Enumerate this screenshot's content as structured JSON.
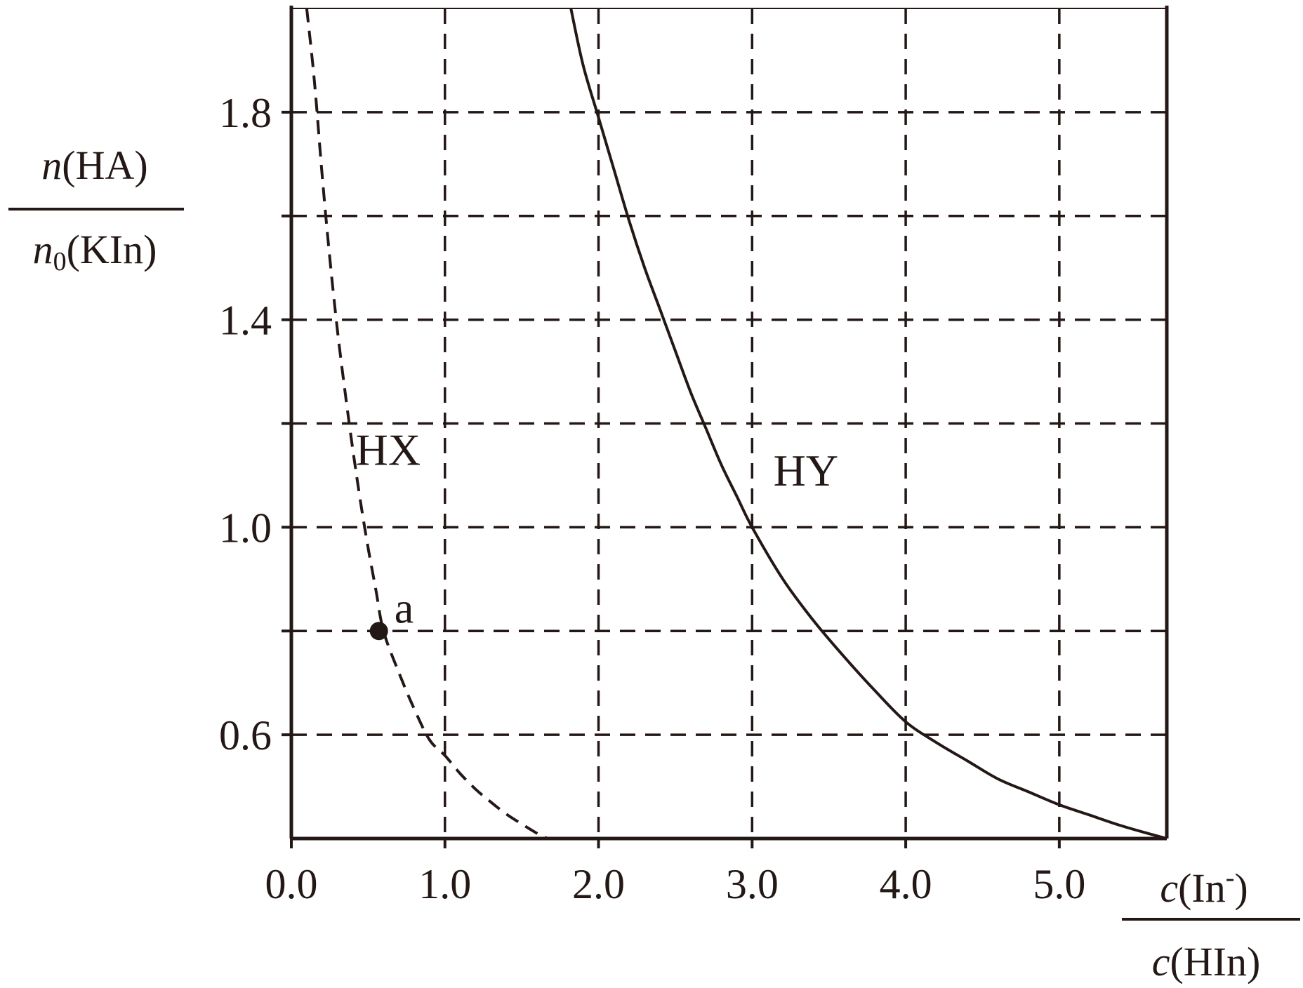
{
  "chart_data": {
    "type": "line",
    "title": "",
    "xlabel": {
      "numerator": {
        "italic": "c",
        "rest": "(In",
        "sup": "-",
        "close": ")"
      },
      "denominator": {
        "italic": "c",
        "rest": "(HIn)"
      }
    },
    "ylabel": {
      "numerator": {
        "italic": "n",
        "rest": "(HA)"
      },
      "denominator": {
        "italic": "n",
        "sub": "0",
        "rest": "(KIn)"
      }
    },
    "xlim": [
      0.0,
      5.7
    ],
    "ylim": [
      0.4,
      2.0
    ],
    "x_ticks": [
      {
        "value": 0.0,
        "label": "0.0"
      },
      {
        "value": 1.0,
        "label": "1.0"
      },
      {
        "value": 2.0,
        "label": "2.0"
      },
      {
        "value": 3.0,
        "label": "3.0"
      },
      {
        "value": 4.0,
        "label": "4.0"
      },
      {
        "value": 5.0,
        "label": "5.0"
      }
    ],
    "y_ticks": [
      {
        "value": 0.6,
        "label": "0.6"
      },
      {
        "value": 1.0,
        "label": "1.0"
      },
      {
        "value": 1.4,
        "label": "1.4"
      },
      {
        "value": 1.8,
        "label": "1.8"
      }
    ],
    "y_gridlines": [
      0.6,
      0.8,
      1.0,
      1.2,
      1.4,
      1.6,
      1.8
    ],
    "x_gridlines": [
      1.0,
      2.0,
      3.0,
      4.0,
      5.0
    ],
    "grid": true,
    "series": [
      {
        "name": "HX",
        "style": "dashed",
        "x": [
          0.1,
          0.15,
          0.2,
          0.25,
          0.3,
          0.35,
          0.4,
          0.45,
          0.5,
          0.55,
          0.6,
          0.7,
          0.8,
          0.9,
          1.0,
          1.1,
          1.2,
          1.3,
          1.4,
          1.5,
          1.6,
          1.67
        ],
        "y": [
          2.0,
          1.86,
          1.68,
          1.52,
          1.38,
          1.26,
          1.15,
          1.05,
          0.96,
          0.88,
          0.8,
          0.72,
          0.65,
          0.59,
          0.56,
          0.525,
          0.495,
          0.47,
          0.447,
          0.428,
          0.41,
          0.4
        ]
      },
      {
        "name": "HY",
        "style": "solid",
        "x": [
          1.82,
          1.9,
          2.0,
          2.1,
          2.2,
          2.3,
          2.4,
          2.5,
          2.6,
          2.7,
          2.8,
          2.9,
          3.0,
          3.2,
          3.4,
          3.6,
          3.8,
          4.0,
          4.2,
          4.4,
          4.6,
          4.8,
          5.0,
          5.2,
          5.4,
          5.6,
          5.7
        ],
        "y": [
          2.0,
          1.89,
          1.79,
          1.69,
          1.59,
          1.5,
          1.42,
          1.34,
          1.26,
          1.19,
          1.12,
          1.06,
          1.0,
          0.9,
          0.82,
          0.75,
          0.685,
          0.625,
          0.585,
          0.55,
          0.515,
          0.49,
          0.465,
          0.445,
          0.425,
          0.408,
          0.4
        ]
      }
    ],
    "annotations": [
      {
        "id": "point-a",
        "label": "a",
        "x": 0.57,
        "y": 0.8,
        "marker": "filled-circle"
      }
    ],
    "series_labels": [
      {
        "series": "HX",
        "text": "HX",
        "x": 0.63,
        "y": 1.12
      },
      {
        "series": "HY",
        "text": "HY",
        "x": 3.35,
        "y": 1.08
      }
    ],
    "colors": {
      "ink": "#231815",
      "background": "#ffffff"
    }
  }
}
